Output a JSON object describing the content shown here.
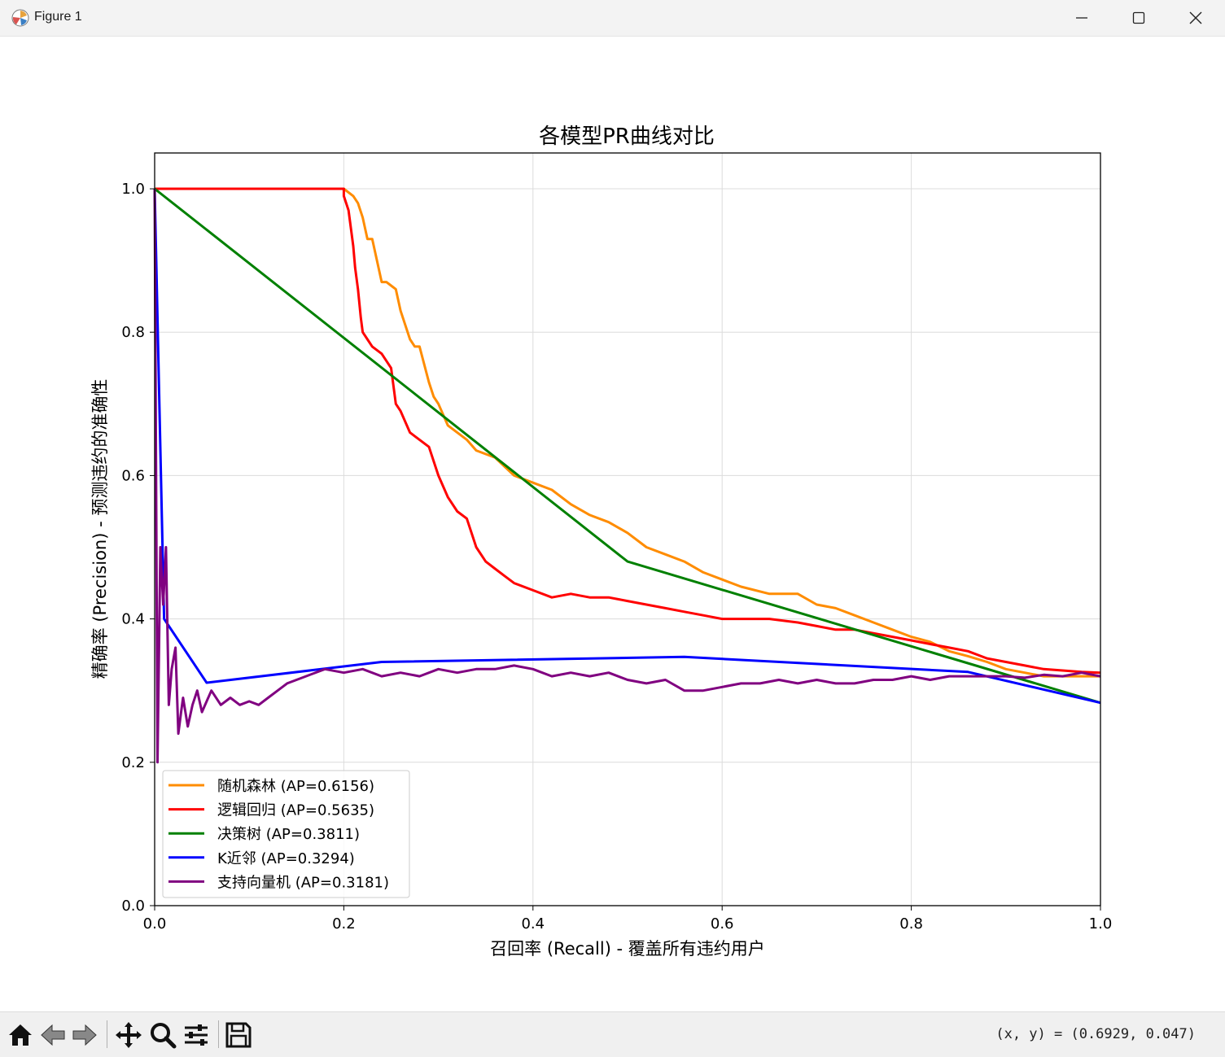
{
  "window": {
    "title": "Figure 1",
    "icon": "matplotlib-icon"
  },
  "titlebar_buttons": [
    "minimize-icon",
    "maximize-icon",
    "close-icon"
  ],
  "toolbar": {
    "buttons": [
      "home-icon",
      "back-arrow-icon",
      "forward-arrow-icon",
      "pan-icon",
      "zoom-icon",
      "configure-subplots-icon",
      "save-icon"
    ],
    "coords": "(x, y) = (0.6929, 0.047)"
  },
  "chart_data": {
    "type": "line",
    "title": "各模型PR曲线对比",
    "xlabel": "召回率 (Recall) - 覆盖所有违约用户",
    "ylabel": "精确率 (Precision) - 预测违约的准确性",
    "xlim": [
      0,
      1
    ],
    "ylim": [
      0,
      1.05
    ],
    "xticks": [
      "0.0",
      "0.2",
      "0.4",
      "0.6",
      "0.8",
      "1.0"
    ],
    "yticks": [
      "0.0",
      "0.2",
      "0.4",
      "0.6",
      "0.8",
      "1.0"
    ],
    "grid": true,
    "legend_position": "lower-left",
    "series": [
      {
        "name": "随机森林 (AP=0.6156)",
        "color": "#ff8c00",
        "x": [
          0,
          0.2,
          0.21,
          0.215,
          0.22,
          0.225,
          0.23,
          0.235,
          0.24,
          0.245,
          0.25,
          0.255,
          0.26,
          0.27,
          0.275,
          0.28,
          0.29,
          0.295,
          0.3,
          0.31,
          0.32,
          0.33,
          0.34,
          0.36,
          0.38,
          0.4,
          0.42,
          0.44,
          0.46,
          0.48,
          0.5,
          0.52,
          0.54,
          0.56,
          0.58,
          0.6,
          0.62,
          0.65,
          0.68,
          0.7,
          0.72,
          0.74,
          0.76,
          0.78,
          0.8,
          0.82,
          0.84,
          0.86,
          0.88,
          0.9,
          0.92,
          0.94,
          0.96,
          0.98,
          1.0
        ],
        "y": [
          1.0,
          1.0,
          0.99,
          0.98,
          0.96,
          0.93,
          0.93,
          0.9,
          0.87,
          0.87,
          0.865,
          0.86,
          0.83,
          0.79,
          0.78,
          0.78,
          0.73,
          0.71,
          0.7,
          0.67,
          0.66,
          0.65,
          0.635,
          0.625,
          0.6,
          0.59,
          0.58,
          0.56,
          0.545,
          0.535,
          0.52,
          0.5,
          0.49,
          0.48,
          0.465,
          0.455,
          0.445,
          0.435,
          0.435,
          0.42,
          0.415,
          0.405,
          0.395,
          0.385,
          0.375,
          0.368,
          0.355,
          0.348,
          0.34,
          0.33,
          0.325,
          0.32,
          0.32,
          0.32,
          0.32
        ]
      },
      {
        "name": "逻辑回归 (AP=0.5635)",
        "color": "#ff0000",
        "x": [
          0,
          0.2,
          0.2,
          0.205,
          0.21,
          0.212,
          0.215,
          0.218,
          0.22,
          0.225,
          0.23,
          0.24,
          0.25,
          0.255,
          0.26,
          0.27,
          0.28,
          0.29,
          0.3,
          0.31,
          0.32,
          0.33,
          0.34,
          0.35,
          0.36,
          0.37,
          0.38,
          0.4,
          0.42,
          0.44,
          0.46,
          0.48,
          0.5,
          0.52,
          0.54,
          0.56,
          0.58,
          0.6,
          0.62,
          0.65,
          0.68,
          0.7,
          0.72,
          0.74,
          0.76,
          0.78,
          0.8,
          0.82,
          0.84,
          0.86,
          0.88,
          0.9,
          0.92,
          0.94,
          0.96,
          0.98,
          1.0
        ],
        "y": [
          1.0,
          1.0,
          0.99,
          0.97,
          0.92,
          0.89,
          0.86,
          0.82,
          0.8,
          0.79,
          0.78,
          0.77,
          0.75,
          0.7,
          0.69,
          0.66,
          0.65,
          0.64,
          0.6,
          0.57,
          0.55,
          0.54,
          0.5,
          0.48,
          0.47,
          0.46,
          0.45,
          0.44,
          0.43,
          0.435,
          0.43,
          0.43,
          0.425,
          0.42,
          0.415,
          0.41,
          0.405,
          0.4,
          0.4,
          0.4,
          0.395,
          0.39,
          0.385,
          0.385,
          0.38,
          0.375,
          0.37,
          0.365,
          0.36,
          0.355,
          0.345,
          0.34,
          0.335,
          0.33,
          0.328,
          0.326,
          0.325
        ]
      },
      {
        "name": "决策树 (AP=0.3811)",
        "color": "#008000",
        "x": [
          0,
          0.5,
          1.0
        ],
        "y": [
          1.0,
          0.48,
          0.283
        ]
      },
      {
        "name": "K近邻 (AP=0.3294)",
        "color": "#0000ff",
        "x": [
          0,
          0.01,
          0.055,
          0.24,
          0.56,
          0.86,
          1.0
        ],
        "y": [
          1.0,
          0.4,
          0.311,
          0.34,
          0.347,
          0.326,
          0.283
        ]
      },
      {
        "name": "支持向量机 (AP=0.3181)",
        "color": "#800080",
        "x": [
          0,
          0.003,
          0.006,
          0.009,
          0.012,
          0.015,
          0.018,
          0.022,
          0.025,
          0.028,
          0.03,
          0.035,
          0.04,
          0.045,
          0.05,
          0.06,
          0.07,
          0.08,
          0.09,
          0.1,
          0.11,
          0.12,
          0.13,
          0.14,
          0.16,
          0.18,
          0.2,
          0.22,
          0.24,
          0.26,
          0.28,
          0.3,
          0.32,
          0.34,
          0.36,
          0.38,
          0.4,
          0.42,
          0.44,
          0.46,
          0.48,
          0.5,
          0.52,
          0.54,
          0.56,
          0.58,
          0.6,
          0.62,
          0.64,
          0.66,
          0.68,
          0.7,
          0.72,
          0.74,
          0.76,
          0.78,
          0.8,
          0.82,
          0.84,
          0.86,
          0.88,
          0.9,
          0.92,
          0.94,
          0.96,
          0.98,
          1.0
        ],
        "y": [
          1.0,
          0.2,
          0.5,
          0.42,
          0.5,
          0.28,
          0.33,
          0.36,
          0.24,
          0.27,
          0.29,
          0.25,
          0.28,
          0.3,
          0.27,
          0.3,
          0.28,
          0.29,
          0.28,
          0.285,
          0.28,
          0.29,
          0.3,
          0.31,
          0.32,
          0.33,
          0.325,
          0.33,
          0.32,
          0.325,
          0.32,
          0.33,
          0.325,
          0.33,
          0.33,
          0.335,
          0.33,
          0.32,
          0.325,
          0.32,
          0.325,
          0.315,
          0.31,
          0.315,
          0.3,
          0.3,
          0.305,
          0.31,
          0.31,
          0.315,
          0.31,
          0.315,
          0.31,
          0.31,
          0.315,
          0.315,
          0.32,
          0.315,
          0.32,
          0.32,
          0.32,
          0.32,
          0.318,
          0.322,
          0.32,
          0.325,
          0.32
        ]
      }
    ]
  }
}
